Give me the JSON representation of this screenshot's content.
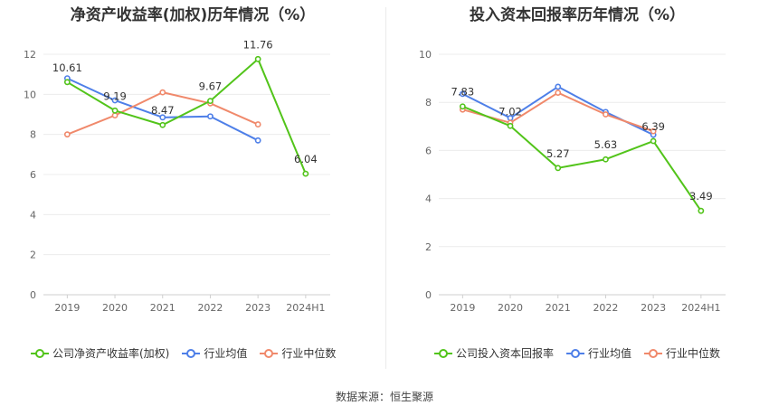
{
  "footer": {
    "source": "数据来源：恒生聚源"
  },
  "chart_data": [
    {
      "type": "line",
      "title": "净资产收益率(加权)历年情况（%）",
      "categories": [
        "2019",
        "2020",
        "2021",
        "2022",
        "2023",
        "2024H1"
      ],
      "ylim": [
        0,
        12
      ],
      "yticks": [
        "0",
        "2",
        "4",
        "6",
        "8",
        "10",
        "12"
      ],
      "grid": true,
      "legend_position": "bottom-left",
      "series": [
        {
          "name": "公司净资产收益率(加权)",
          "color": "#52c41a",
          "values": [
            10.61,
            9.19,
            8.47,
            9.67,
            11.76,
            6.04
          ],
          "labels": [
            "10.61",
            "9.19",
            "8.47",
            "9.67",
            "11.76",
            "6.04"
          ]
        },
        {
          "name": "行业均值",
          "color": "#4e7fe8",
          "values": [
            10.8,
            9.7,
            8.85,
            8.9,
            7.7,
            null
          ]
        },
        {
          "name": "行业中位数",
          "color": "#f0896b",
          "values": [
            8.0,
            8.95,
            10.1,
            9.55,
            8.5,
            null
          ]
        }
      ]
    },
    {
      "type": "line",
      "title": "投入资本回报率历年情况（%）",
      "categories": [
        "2019",
        "2020",
        "2021",
        "2022",
        "2023",
        "2024H1"
      ],
      "ylim": [
        0,
        10
      ],
      "yticks": [
        "0",
        "2",
        "4",
        "6",
        "8",
        "10"
      ],
      "grid": true,
      "legend_position": "bottom-left",
      "series": [
        {
          "name": "公司投入资本回报率",
          "color": "#52c41a",
          "values": [
            7.83,
            7.02,
            5.27,
            5.63,
            6.39,
            3.49
          ],
          "labels": [
            "7.83",
            "7.02",
            "5.27",
            "5.63",
            "6.39",
            "3.49"
          ]
        },
        {
          "name": "行业均值",
          "color": "#4e7fe8",
          "values": [
            8.35,
            7.35,
            8.65,
            7.6,
            6.65,
            null
          ]
        },
        {
          "name": "行业中位数",
          "color": "#f0896b",
          "values": [
            7.7,
            7.15,
            8.4,
            7.5,
            6.8,
            null
          ]
        }
      ]
    }
  ]
}
